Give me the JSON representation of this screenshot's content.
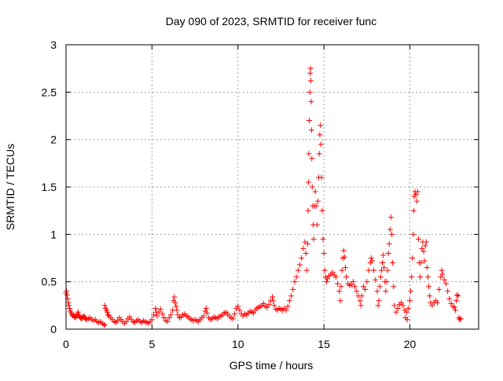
{
  "chart_data": {
    "type": "scatter",
    "title": "Day 090 of 2023, SRMTID for receiver func",
    "xlabel": "GPS time / hours",
    "ylabel": "SRMTID / TECUs",
    "xlim": [
      0,
      24
    ],
    "ylim": [
      0,
      3
    ],
    "xticks": [
      "0",
      "5",
      "10",
      "15",
      "20"
    ],
    "yticks": [
      "0",
      "0.5",
      "1",
      "1.5",
      "2",
      "2.5",
      "3"
    ],
    "grid": true,
    "marker": "plus",
    "color": "#ff0000",
    "series": [
      {
        "name": "SRMTID",
        "points": [
          [
            0.0,
            0.38
          ],
          [
            0.03,
            0.4
          ],
          [
            0.06,
            0.36
          ],
          [
            0.1,
            0.32
          ],
          [
            0.13,
            0.28
          ],
          [
            0.17,
            0.25
          ],
          [
            0.2,
            0.22
          ],
          [
            0.25,
            0.19
          ],
          [
            0.3,
            0.17
          ],
          [
            0.35,
            0.15
          ],
          [
            0.4,
            0.14
          ],
          [
            0.45,
            0.15
          ],
          [
            0.5,
            0.13
          ],
          [
            0.55,
            0.12
          ],
          [
            0.6,
            0.14
          ],
          [
            0.65,
            0.16
          ],
          [
            0.7,
            0.18
          ],
          [
            0.75,
            0.15
          ],
          [
            0.8,
            0.13
          ],
          [
            0.85,
            0.12
          ],
          [
            0.9,
            0.11
          ],
          [
            0.95,
            0.12
          ],
          [
            1.0,
            0.13
          ],
          [
            1.05,
            0.14
          ],
          [
            1.1,
            0.12
          ],
          [
            1.15,
            0.11
          ],
          [
            1.2,
            0.1
          ],
          [
            1.3,
            0.11
          ],
          [
            1.4,
            0.12
          ],
          [
            1.5,
            0.1
          ],
          [
            1.6,
            0.09
          ],
          [
            1.7,
            0.1
          ],
          [
            1.8,
            0.08
          ],
          [
            1.9,
            0.07
          ],
          [
            2.0,
            0.08
          ],
          [
            2.1,
            0.06
          ],
          [
            2.2,
            0.05
          ],
          [
            2.25,
            0.04
          ],
          [
            2.25,
            0.25
          ],
          [
            2.3,
            0.22
          ],
          [
            2.35,
            0.2
          ],
          [
            2.4,
            0.18
          ],
          [
            2.45,
            0.15
          ],
          [
            2.5,
            0.14
          ],
          [
            2.6,
            0.12
          ],
          [
            2.7,
            0.1
          ],
          [
            2.8,
            0.08
          ],
          [
            2.9,
            0.07
          ],
          [
            3.0,
            0.09
          ],
          [
            3.1,
            0.12
          ],
          [
            3.2,
            0.1
          ],
          [
            3.3,
            0.08
          ],
          [
            3.4,
            0.06
          ],
          [
            3.5,
            0.08
          ],
          [
            3.6,
            0.11
          ],
          [
            3.7,
            0.13
          ],
          [
            3.8,
            0.1
          ],
          [
            3.9,
            0.08
          ],
          [
            4.0,
            0.07
          ],
          [
            4.1,
            0.09
          ],
          [
            4.2,
            0.1
          ],
          [
            4.3,
            0.08
          ],
          [
            4.4,
            0.07
          ],
          [
            4.5,
            0.09
          ],
          [
            4.6,
            0.08
          ],
          [
            4.7,
            0.07
          ],
          [
            4.8,
            0.06
          ],
          [
            4.9,
            0.08
          ],
          [
            5.0,
            0.1
          ],
          [
            5.1,
            0.15
          ],
          [
            5.2,
            0.22
          ],
          [
            5.25,
            0.18
          ],
          [
            5.3,
            0.14
          ],
          [
            5.4,
            0.18
          ],
          [
            5.5,
            0.21
          ],
          [
            5.6,
            0.16
          ],
          [
            5.7,
            0.12
          ],
          [
            5.8,
            0.09
          ],
          [
            5.9,
            0.08
          ],
          [
            6.0,
            0.12
          ],
          [
            6.1,
            0.15
          ],
          [
            6.2,
            0.2
          ],
          [
            6.25,
            0.3
          ],
          [
            6.3,
            0.34
          ],
          [
            6.35,
            0.28
          ],
          [
            6.4,
            0.24
          ],
          [
            6.45,
            0.2
          ],
          [
            6.5,
            0.15
          ],
          [
            6.6,
            0.12
          ],
          [
            6.7,
            0.13
          ],
          [
            6.8,
            0.15
          ],
          [
            6.9,
            0.16
          ],
          [
            7.0,
            0.14
          ],
          [
            7.1,
            0.13
          ],
          [
            7.2,
            0.11
          ],
          [
            7.3,
            0.1
          ],
          [
            7.4,
            0.09
          ],
          [
            7.5,
            0.1
          ],
          [
            7.6,
            0.09
          ],
          [
            7.7,
            0.08
          ],
          [
            7.8,
            0.1
          ],
          [
            7.9,
            0.12
          ],
          [
            8.0,
            0.14
          ],
          [
            8.1,
            0.19
          ],
          [
            8.15,
            0.22
          ],
          [
            8.2,
            0.17
          ],
          [
            8.3,
            0.12
          ],
          [
            8.4,
            0.1
          ],
          [
            8.5,
            0.11
          ],
          [
            8.6,
            0.13
          ],
          [
            8.7,
            0.12
          ],
          [
            8.8,
            0.11
          ],
          [
            8.9,
            0.13
          ],
          [
            9.0,
            0.14
          ],
          [
            9.1,
            0.15
          ],
          [
            9.2,
            0.17
          ],
          [
            9.3,
            0.18
          ],
          [
            9.4,
            0.16
          ],
          [
            9.5,
            0.14
          ],
          [
            9.6,
            0.12
          ],
          [
            9.7,
            0.11
          ],
          [
            9.8,
            0.16
          ],
          [
            9.9,
            0.22
          ],
          [
            10.0,
            0.24
          ],
          [
            10.1,
            0.2
          ],
          [
            10.2,
            0.16
          ],
          [
            10.3,
            0.14
          ],
          [
            10.4,
            0.16
          ],
          [
            10.5,
            0.15
          ],
          [
            10.6,
            0.17
          ],
          [
            10.7,
            0.19
          ],
          [
            10.8,
            0.18
          ],
          [
            10.9,
            0.17
          ],
          [
            11.0,
            0.2
          ],
          [
            11.1,
            0.22
          ],
          [
            11.2,
            0.23
          ],
          [
            11.3,
            0.24
          ],
          [
            11.4,
            0.25
          ],
          [
            11.5,
            0.27
          ],
          [
            11.6,
            0.24
          ],
          [
            11.7,
            0.23
          ],
          [
            11.8,
            0.26
          ],
          [
            11.9,
            0.3
          ],
          [
            12.0,
            0.34
          ],
          [
            12.05,
            0.3
          ],
          [
            12.1,
            0.25
          ],
          [
            12.2,
            0.21
          ],
          [
            12.3,
            0.2
          ],
          [
            12.4,
            0.22
          ],
          [
            12.5,
            0.21
          ],
          [
            12.6,
            0.2
          ],
          [
            12.7,
            0.22
          ],
          [
            12.8,
            0.2
          ],
          [
            12.9,
            0.24
          ],
          [
            13.0,
            0.3
          ],
          [
            13.1,
            0.35
          ],
          [
            13.2,
            0.42
          ],
          [
            13.3,
            0.5
          ],
          [
            13.4,
            0.55
          ],
          [
            13.5,
            0.62
          ],
          [
            13.6,
            0.68
          ],
          [
            13.7,
            0.75
          ],
          [
            13.8,
            0.85
          ],
          [
            13.9,
            0.92
          ],
          [
            13.95,
            0.8
          ],
          [
            14.0,
            0.62
          ],
          [
            14.05,
            0.9
          ],
          [
            14.08,
            1.25
          ],
          [
            14.1,
            1.55
          ],
          [
            14.12,
            1.85
          ],
          [
            14.15,
            2.2
          ],
          [
            14.18,
            2.5
          ],
          [
            14.2,
            2.7
          ],
          [
            14.22,
            2.75
          ],
          [
            14.24,
            2.62
          ],
          [
            14.26,
            2.4
          ],
          [
            14.28,
            2.1
          ],
          [
            14.3,
            1.8
          ],
          [
            14.32,
            1.5
          ],
          [
            14.35,
            1.3
          ],
          [
            14.38,
            1.1
          ],
          [
            14.4,
            0.95
          ],
          [
            14.45,
            1.3
          ],
          [
            14.5,
            1.45
          ],
          [
            14.55,
            1.3
          ],
          [
            14.6,
            1.1
          ],
          [
            14.65,
            1.35
          ],
          [
            14.7,
            1.6
          ],
          [
            14.73,
            1.85
          ],
          [
            14.76,
            2.05
          ],
          [
            14.8,
            2.15
          ],
          [
            14.83,
            1.95
          ],
          [
            14.86,
            1.6
          ],
          [
            14.9,
            1.25
          ],
          [
            14.95,
            0.95
          ],
          [
            15.0,
            0.8
          ],
          [
            15.05,
            0.62
          ],
          [
            15.1,
            0.55
          ],
          [
            15.15,
            0.5
          ],
          [
            15.2,
            0.53
          ],
          [
            15.3,
            0.56
          ],
          [
            15.4,
            0.58
          ],
          [
            15.5,
            0.6
          ],
          [
            15.6,
            0.57
          ],
          [
            15.7,
            0.55
          ],
          [
            15.8,
            0.48
          ],
          [
            15.9,
            0.4
          ],
          [
            15.95,
            0.3
          ],
          [
            16.0,
            0.45
          ],
          [
            16.05,
            0.62
          ],
          [
            16.1,
            0.75
          ],
          [
            16.15,
            0.83
          ],
          [
            16.2,
            0.76
          ],
          [
            16.25,
            0.65
          ],
          [
            16.3,
            0.55
          ],
          [
            16.4,
            0.48
          ],
          [
            16.5,
            0.46
          ],
          [
            16.6,
            0.47
          ],
          [
            16.7,
            0.5
          ],
          [
            16.8,
            0.45
          ],
          [
            16.9,
            0.4
          ],
          [
            17.0,
            0.35
          ],
          [
            17.1,
            0.3
          ],
          [
            17.15,
            0.25
          ],
          [
            17.2,
            0.35
          ],
          [
            17.3,
            0.45
          ],
          [
            17.4,
            0.42
          ],
          [
            17.5,
            0.5
          ],
          [
            17.6,
            0.62
          ],
          [
            17.7,
            0.7
          ],
          [
            17.75,
            0.75
          ],
          [
            17.8,
            0.72
          ],
          [
            17.9,
            0.62
          ],
          [
            18.0,
            0.52
          ],
          [
            18.1,
            0.4
          ],
          [
            18.15,
            0.25
          ],
          [
            18.2,
            0.3
          ],
          [
            18.25,
            0.45
          ],
          [
            18.3,
            0.55
          ],
          [
            18.35,
            0.62
          ],
          [
            18.4,
            0.7
          ],
          [
            18.45,
            0.78
          ],
          [
            18.5,
            0.65
          ],
          [
            18.55,
            0.5
          ],
          [
            18.6,
            0.4
          ],
          [
            18.65,
            0.5
          ],
          [
            18.7,
            0.62
          ],
          [
            18.75,
            0.8
          ],
          [
            18.8,
            0.9
          ],
          [
            18.85,
            1.05
          ],
          [
            18.9,
            1.18
          ],
          [
            18.95,
            1.0
          ],
          [
            19.0,
            0.7
          ],
          [
            19.05,
            0.45
          ],
          [
            19.1,
            0.25
          ],
          [
            19.2,
            0.18
          ],
          [
            19.3,
            0.22
          ],
          [
            19.4,
            0.26
          ],
          [
            19.5,
            0.28
          ],
          [
            19.6,
            0.25
          ],
          [
            19.7,
            0.2
          ],
          [
            19.75,
            0.12
          ],
          [
            19.8,
            0.18
          ],
          [
            19.85,
            0.1
          ],
          [
            19.9,
            0.22
          ],
          [
            20.0,
            0.3
          ],
          [
            20.05,
            0.4
          ],
          [
            20.1,
            0.55
          ],
          [
            20.15,
            0.75
          ],
          [
            20.2,
            1.0
          ],
          [
            20.22,
            1.25
          ],
          [
            20.25,
            1.4
          ],
          [
            20.3,
            1.45
          ],
          [
            20.35,
            1.42
          ],
          [
            20.4,
            1.35
          ],
          [
            20.45,
            1.45
          ],
          [
            20.5,
            0.95
          ],
          [
            20.55,
            0.7
          ],
          [
            20.6,
            0.55
          ],
          [
            20.65,
            0.7
          ],
          [
            20.7,
            0.85
          ],
          [
            20.75,
            0.92
          ],
          [
            20.8,
            0.82
          ],
          [
            20.85,
            0.72
          ],
          [
            20.9,
            0.88
          ],
          [
            20.95,
            0.92
          ],
          [
            21.0,
            0.65
          ],
          [
            21.05,
            0.55
          ],
          [
            21.1,
            0.45
          ],
          [
            21.15,
            0.35
          ],
          [
            21.2,
            0.28
          ],
          [
            21.3,
            0.25
          ],
          [
            21.4,
            0.28
          ],
          [
            21.5,
            0.3
          ],
          [
            21.6,
            0.28
          ],
          [
            21.7,
            0.42
          ],
          [
            21.8,
            0.55
          ],
          [
            21.85,
            0.62
          ],
          [
            21.9,
            0.58
          ],
          [
            22.0,
            0.52
          ],
          [
            22.1,
            0.48
          ],
          [
            22.2,
            0.4
          ],
          [
            22.3,
            0.32
          ],
          [
            22.4,
            0.27
          ],
          [
            22.5,
            0.24
          ],
          [
            22.6,
            0.23
          ],
          [
            22.65,
            0.2
          ],
          [
            22.7,
            0.3
          ],
          [
            22.75,
            0.36
          ],
          [
            22.8,
            0.35
          ],
          [
            22.85,
            0.12
          ],
          [
            22.9,
            0.1
          ],
          [
            22.95,
            0.11
          ]
        ]
      }
    ]
  }
}
